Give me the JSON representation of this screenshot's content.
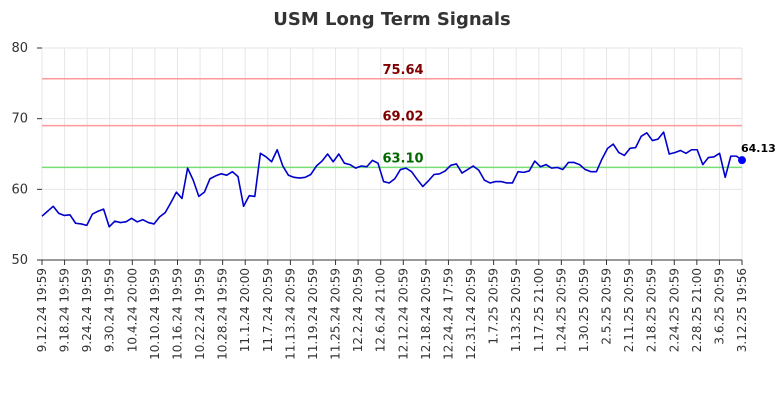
{
  "chart_data": {
    "type": "line",
    "title": "USM Long Term Signals",
    "ylim": [
      50,
      80
    ],
    "yticks": [
      50,
      60,
      70,
      80
    ],
    "grid": true,
    "x_tick_labels": [
      "9.12.24 19:59",
      "9.18.24 19:59",
      "9.24.24 19:59",
      "9.30.24 19:59",
      "10.4.24 20:00",
      "10.10.24 19:59",
      "10.16.24 19:59",
      "10.22.24 19:59",
      "10.28.24 19:59",
      "11.1.24 20:00",
      "11.7.24 20:59",
      "11.13.24 20:59",
      "11.19.24 20:59",
      "11.25.24 20:59",
      "12.2.24 20:59",
      "12.6.24 21:00",
      "12.12.24 20:59",
      "12.18.24 20:59",
      "12.24.24 17:59",
      "12.31.24 20:59",
      "1.7.25 20:59",
      "1.13.25 20:59",
      "1.17.25 21:00",
      "1.24.25 20:59",
      "1.30.25 20:59",
      "2.5.25 20:59",
      "2.11.25 20:59",
      "2.18.25 20:59",
      "2.24.25 20:59",
      "2.28.25 21:00",
      "3.6.25 20:59",
      "3.12.25 19:56"
    ],
    "series": [
      {
        "color": "#0000cc",
        "values": [
          56.2,
          56.9,
          57.6,
          56.6,
          56.3,
          56.4,
          55.2,
          55.1,
          54.9,
          56.5,
          56.9,
          57.2,
          54.7,
          55.5,
          55.3,
          55.4,
          55.9,
          55.4,
          55.7,
          55.3,
          55.1,
          56.1,
          56.7,
          58.1,
          59.6,
          58.7,
          63.0,
          61.3,
          59.0,
          59.6,
          61.5,
          61.9,
          62.2,
          62.0,
          62.5,
          61.8,
          57.6,
          59.1,
          59.0,
          65.1,
          64.6,
          63.9,
          65.6,
          63.3,
          62.0,
          61.7,
          61.6,
          61.7,
          62.1,
          63.3,
          64.0,
          65.0,
          63.9,
          65.0,
          63.7,
          63.5,
          63.0,
          63.3,
          63.2,
          64.1,
          63.7,
          61.1,
          60.9,
          61.5,
          62.8,
          63.0,
          62.5,
          61.4,
          60.4,
          61.2,
          62.1,
          62.2,
          62.6,
          63.4,
          63.6,
          62.3,
          62.8,
          63.3,
          62.7,
          61.3,
          60.9,
          61.1,
          61.1,
          60.9,
          60.9,
          62.5,
          62.4,
          62.6,
          64.0,
          63.2,
          63.5,
          63.0,
          63.1,
          62.8,
          63.8,
          63.8,
          63.5,
          62.8,
          62.5,
          62.5,
          64.3,
          65.8,
          66.4,
          65.2,
          64.8,
          65.8,
          65.9,
          67.5,
          68.0,
          66.9,
          67.1,
          68.1,
          65.0,
          65.2,
          65.5,
          65.1,
          65.6,
          65.6,
          63.5,
          64.5,
          64.6,
          65.1,
          61.7,
          64.7,
          64.7,
          64.13
        ]
      }
    ],
    "reference_lines": [
      {
        "label": "75.64",
        "value": 75.64,
        "color": "#ff9999",
        "label_color": "#800000"
      },
      {
        "label": "69.02",
        "value": 69.02,
        "color": "#ff9999",
        "label_color": "#800000"
      },
      {
        "label": "63.10",
        "value": 63.1,
        "color": "#77dd77",
        "label_color": "#006600"
      }
    ],
    "last_point": {
      "label": "64.13",
      "value": 64.13,
      "color": "#0000ff"
    },
    "colors": {
      "grid": "#e6e6e6",
      "axis": "#333333",
      "title": "#333333",
      "tick_text": "#333333"
    }
  }
}
